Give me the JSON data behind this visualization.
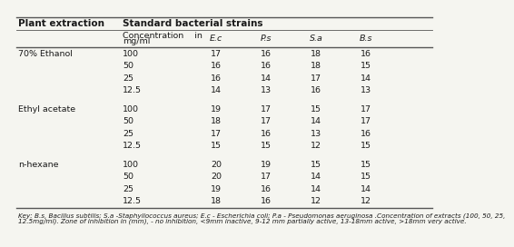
{
  "title": "Standard bacterial strains",
  "col1_header": "Plant extraction",
  "bacteria_headers": [
    "E.c",
    "P.s",
    "S.a",
    "B.s"
  ],
  "sections": [
    {
      "name": "70% Ethanol",
      "rows": [
        {
          "conc": "100",
          "Ec": "17",
          "Ps": "16",
          "Sa": "18",
          "Bs": "16"
        },
        {
          "conc": "50",
          "Ec": "16",
          "Ps": "16",
          "Sa": "18",
          "Bs": "15"
        },
        {
          "conc": "25",
          "Ec": "16",
          "Ps": "14",
          "Sa": "17",
          "Bs": "14"
        },
        {
          "conc": "12.5",
          "Ec": "14",
          "Ps": "13",
          "Sa": "16",
          "Bs": "13"
        }
      ]
    },
    {
      "name": "Ethyl acetate",
      "rows": [
        {
          "conc": "100",
          "Ec": "19",
          "Ps": "17",
          "Sa": "15",
          "Bs": "17"
        },
        {
          "conc": "50",
          "Ec": "18",
          "Ps": "17",
          "Sa": "14",
          "Bs": "17"
        },
        {
          "conc": "25",
          "Ec": "17",
          "Ps": "16",
          "Sa": "13",
          "Bs": "16"
        },
        {
          "conc": "12.5",
          "Ec": "15",
          "Ps": "15",
          "Sa": "12",
          "Bs": "15"
        }
      ]
    },
    {
      "name": "n-hexane",
      "rows": [
        {
          "conc": "100",
          "Ec": "20",
          "Ps": "19",
          "Sa": "15",
          "Bs": "15"
        },
        {
          "conc": "50",
          "Ec": "20",
          "Ps": "17",
          "Sa": "14",
          "Bs": "15"
        },
        {
          "conc": "25",
          "Ec": "19",
          "Ps": "16",
          "Sa": "14",
          "Bs": "14"
        },
        {
          "conc": "12.5",
          "Ec": "18",
          "Ps": "16",
          "Sa": "12",
          "Bs": "12"
        }
      ]
    }
  ],
  "footnote_line1": "Key: B.s, Bacillus subtilis; S.a -Staphyllococcus aureus; E.c - Escherichia coli; P.a - Pseudomonas aeruginosa .Concentration of extracts (100, 50, 25,",
  "footnote_line2": "12.5mg/ml). Zone of inhibition in (mm), - no inhibition, <9mm inactive, 9-12 mm partially active, 13-18mm active, >18mm very active.",
  "bg_color": "#f5f5f0",
  "line_color": "#555555",
  "text_color": "#1a1a1a"
}
